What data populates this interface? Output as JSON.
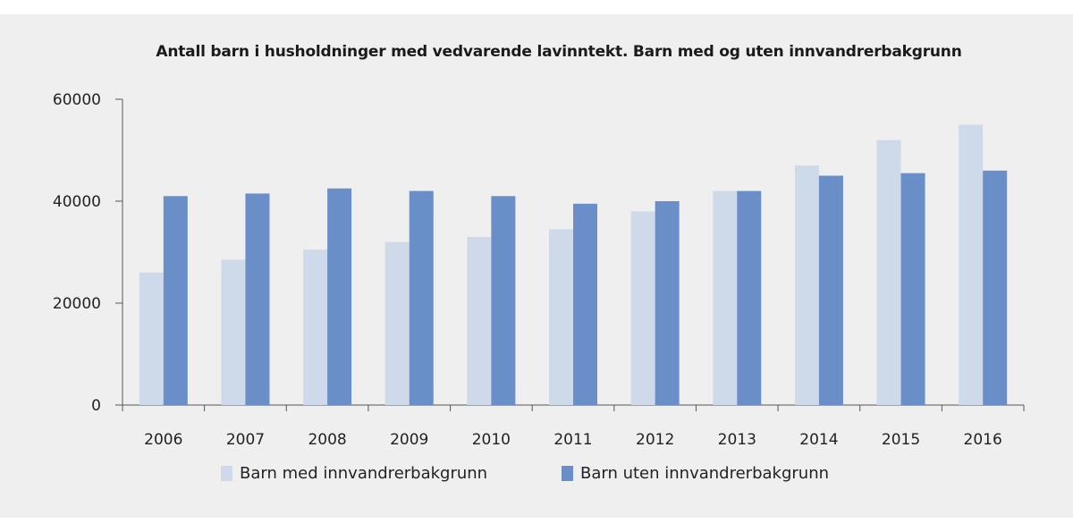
{
  "chart_data": {
    "type": "bar",
    "title": "Antall barn i husholdninger med vedvarende lavinntekt. Barn med og uten innvandrerbakgrunn",
    "xlabel": "",
    "ylabel": "",
    "categories": [
      "2006",
      "2007",
      "2008",
      "2009",
      "2010",
      "2011",
      "2012",
      "2013",
      "2014",
      "2015",
      "2016"
    ],
    "series": [
      {
        "name": "Barn med innvandrerbakgrunn",
        "color": "#ced9ea",
        "values": [
          26000,
          28500,
          30500,
          32000,
          33000,
          34500,
          38000,
          42000,
          47000,
          52000,
          55000
        ]
      },
      {
        "name": "Barn uten innvandrerbakgrunn",
        "color": "#6a8fc8",
        "values": [
          41000,
          41500,
          42500,
          42000,
          41000,
          39500,
          40000,
          42000,
          45000,
          45500,
          46000
        ]
      }
    ],
    "ylim": [
      0,
      60000
    ],
    "yticks": [
      0,
      20000,
      40000,
      60000
    ],
    "grid": false,
    "legend": "bottom"
  }
}
